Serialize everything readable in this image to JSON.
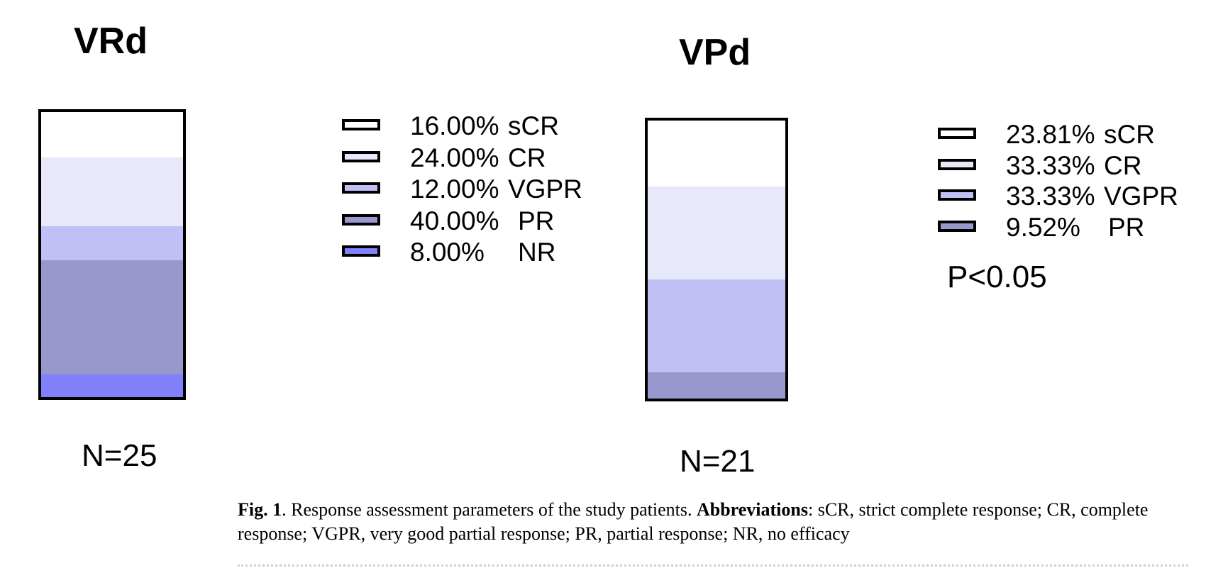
{
  "colors": {
    "sCR": "#ffffff",
    "CR": "#e8e8fb",
    "VGPR": "#c0c0f6",
    "PR": "#9898cc",
    "NR": "#8080fa"
  },
  "chart_data": [
    {
      "type": "bar",
      "stacked": true,
      "title": "VRd",
      "n_label": "N=25",
      "segments": [
        {
          "name": "sCR",
          "value": 16.0,
          "label": "16.00%"
        },
        {
          "name": "CR",
          "value": 24.0,
          "label": "24.00%"
        },
        {
          "name": "VGPR",
          "value": 12.0,
          "label": "12.00%"
        },
        {
          "name": "PR",
          "value": 40.0,
          "label": "40.00%"
        },
        {
          "name": "NR",
          "value": 8.0,
          "label": "8.00%"
        }
      ]
    },
    {
      "type": "bar",
      "stacked": true,
      "title": "VPd",
      "n_label": "N=21",
      "annotation": "P<0.05",
      "segments": [
        {
          "name": "sCR",
          "value": 23.81,
          "label": "23.81%"
        },
        {
          "name": "CR",
          "value": 33.33,
          "label": "33.33%"
        },
        {
          "name": "VGPR",
          "value": 33.33,
          "label": "33.33%"
        },
        {
          "name": "PR",
          "value": 9.52,
          "label": "9.52%"
        }
      ]
    }
  ],
  "caption": {
    "fig_label": "Fig. 1",
    "text1": ". Response assessment parameters of the study patients. ",
    "abbrev_label": "Abbreviations",
    "text2": ": sCR, strict complete response; CR, complete response; VGPR, very good partial response; PR, partial response; NR, no efficacy"
  }
}
